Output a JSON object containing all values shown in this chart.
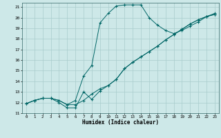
{
  "xlabel": "Humidex (Indice chaleur)",
  "bg_color": "#cde8e8",
  "grid_color": "#a8cccc",
  "line_color": "#006666",
  "xlim": [
    -0.5,
    23.5
  ],
  "ylim": [
    11,
    21.4
  ],
  "yticks": [
    11,
    12,
    13,
    14,
    15,
    16,
    17,
    18,
    19,
    20,
    21
  ],
  "xticks": [
    0,
    1,
    2,
    3,
    4,
    5,
    6,
    7,
    8,
    9,
    10,
    11,
    12,
    13,
    14,
    15,
    16,
    17,
    18,
    19,
    20,
    21,
    22,
    23
  ],
  "line1_x": [
    0,
    1,
    2,
    3,
    4,
    5,
    6,
    7,
    8,
    9,
    10,
    11,
    12,
    13,
    14,
    15,
    16,
    17,
    18,
    19,
    20,
    21,
    22,
    23
  ],
  "line1_y": [
    11.9,
    12.2,
    12.4,
    12.4,
    12.2,
    11.8,
    11.8,
    12.2,
    12.8,
    13.3,
    13.6,
    14.2,
    15.2,
    15.8,
    16.3,
    16.8,
    17.3,
    17.9,
    18.4,
    18.9,
    19.4,
    19.8,
    20.1,
    20.3
  ],
  "line2_x": [
    0,
    1,
    2,
    3,
    4,
    5,
    6,
    7,
    8,
    9,
    10,
    11,
    12,
    13,
    14,
    15,
    16,
    17,
    18,
    19,
    20,
    21,
    22,
    23
  ],
  "line2_y": [
    11.9,
    12.2,
    12.4,
    12.4,
    12.2,
    11.8,
    12.2,
    14.5,
    15.5,
    19.5,
    20.4,
    21.1,
    21.2,
    21.2,
    21.2,
    20.0,
    19.3,
    18.8,
    18.5,
    18.8,
    19.2,
    19.6,
    20.1,
    20.4
  ],
  "line3_x": [
    0,
    1,
    2,
    3,
    4,
    5,
    6,
    7,
    8,
    9,
    10,
    11,
    12,
    13,
    14,
    15,
    16,
    17,
    18,
    19,
    20,
    21,
    22,
    23
  ],
  "line3_y": [
    11.9,
    12.2,
    12.4,
    12.4,
    12.0,
    11.5,
    11.5,
    13.0,
    12.3,
    13.1,
    13.6,
    14.2,
    15.2,
    15.8,
    16.3,
    16.8,
    17.3,
    17.9,
    18.4,
    18.9,
    19.4,
    19.8,
    20.1,
    20.3
  ]
}
